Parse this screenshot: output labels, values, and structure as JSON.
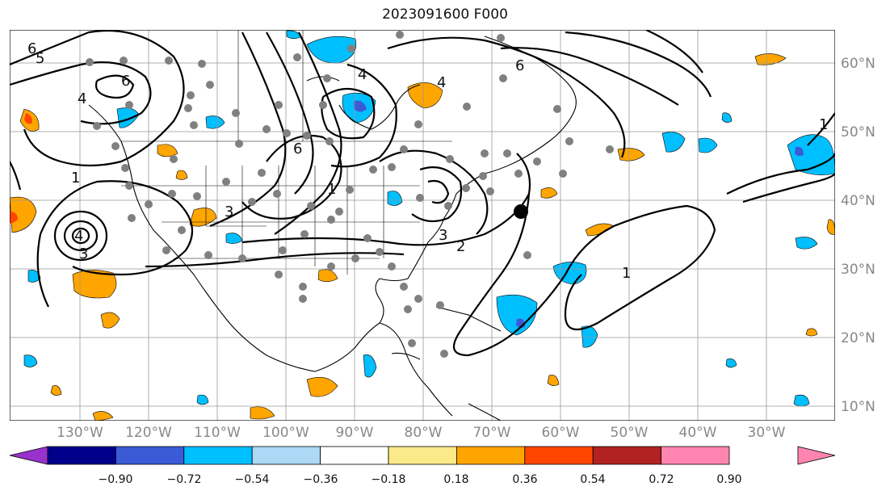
{
  "map": {
    "title": "2023091600 F000",
    "lat_labels": [
      "60°N",
      "50°N",
      "40°N",
      "30°N",
      "20°N",
      "10°N"
    ],
    "lon_labels": [
      "130°W",
      "120°W",
      "110°W",
      "100°W",
      "90°W",
      "80°W",
      "70°W",
      "60°W",
      "50°W",
      "40°W",
      "30°W"
    ],
    "contour_labels": [
      "6",
      "5",
      "6",
      "4",
      "4",
      "6",
      "1",
      "3",
      "4",
      "3",
      "3",
      "2",
      "4",
      "6",
      "1",
      "1",
      "1"
    ]
  },
  "colorbar": {
    "tick_labels": [
      "−0.90",
      "−0.72",
      "−0.54",
      "−0.36",
      "−0.18",
      "0.18",
      "0.36",
      "0.54",
      "0.72",
      "0.90"
    ],
    "colors": [
      "#9932cc",
      "#00008b",
      "#3b5bd6",
      "#00bfff",
      "#add8f6",
      "#ffffff",
      "#fce98a",
      "#ffa500",
      "#ff4500",
      "#b22222",
      "#ff85b0"
    ]
  }
}
